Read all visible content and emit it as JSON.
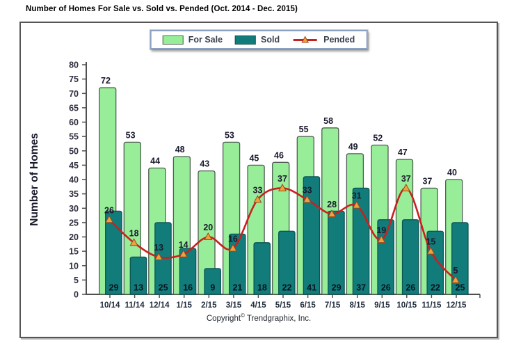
{
  "title": "Number of Homes For Sale vs. Sold vs. Pended (Oct. 2014 - Dec. 2015)",
  "legend": {
    "for_sale": "For Sale",
    "sold": "Sold",
    "pended": "Pended"
  },
  "footer": {
    "copyright_prefix": "Copyright",
    "copyright_symbol": "©",
    "copyright_suffix": " Trendgraphix, Inc."
  },
  "colors": {
    "for_sale_fill": "#98ED98",
    "for_sale_border": "#4e5d52",
    "sold_fill": "#117C7A",
    "sold_border": "#0a5553",
    "pended_line": "#C9201D",
    "marker_fill": "#EFA13D",
    "marker_border": "#96491E",
    "axis": "#4f4f4f",
    "tick_label": "#2e2e3e",
    "month_label": "#1e2a3a",
    "value_label": "#1a1a2e",
    "sold_value_label": "#06131f"
  },
  "chart_data": {
    "type": "bar",
    "title": "Number of Homes For Sale vs. Sold vs. Pended (Oct. 2014 - Dec. 2015)",
    "xlabel": "",
    "ylabel": "Number of Homes",
    "ylim": [
      0,
      80
    ],
    "ytick_step": 5,
    "grid": false,
    "legend_position": "top-center",
    "categories": [
      "10/14",
      "11/14",
      "12/14",
      "1/15",
      "2/15",
      "3/15",
      "4/15",
      "5/15",
      "6/15",
      "7/15",
      "8/15",
      "9/15",
      "10/15",
      "11/15",
      "12/15"
    ],
    "series": [
      {
        "name": "For Sale",
        "type": "bar",
        "values": [
          72,
          53,
          44,
          48,
          43,
          53,
          45,
          46,
          55,
          58,
          49,
          52,
          47,
          37,
          40
        ]
      },
      {
        "name": "Sold",
        "type": "bar",
        "values": [
          29,
          13,
          25,
          16,
          9,
          21,
          18,
          22,
          41,
          29,
          37,
          26,
          26,
          22,
          25
        ]
      },
      {
        "name": "Pended",
        "type": "line",
        "values": [
          26,
          18,
          13,
          14,
          20,
          16,
          33,
          37,
          33,
          28,
          31,
          19,
          37,
          15,
          5
        ]
      }
    ]
  }
}
